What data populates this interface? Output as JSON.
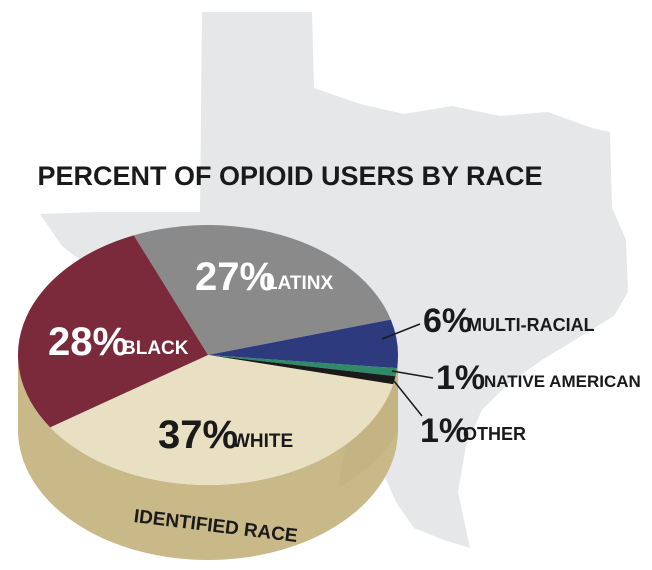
{
  "chart_data": {
    "type": "pie",
    "title": "PERCENT OF OPIOID USERS BY RACE",
    "base_label": "IDENTIFIED RACE",
    "slices": [
      {
        "label": "LATINX",
        "percent_text": "27%",
        "value": 27,
        "color": "#8a8a8a",
        "label_position": "inside"
      },
      {
        "label": "MULTI-RACIAL",
        "percent_text": "6%",
        "value": 6,
        "color": "#2e3a7e",
        "label_position": "outside"
      },
      {
        "label": "NATIVE AMERICAN",
        "percent_text": "1%",
        "value": 1,
        "color": "#2f8a6a",
        "label_position": "outside"
      },
      {
        "label": "OTHER",
        "percent_text": "1%",
        "value": 1,
        "color": "#1a1a1a",
        "label_position": "outside"
      },
      {
        "label": "WHITE",
        "percent_text": "37%",
        "value": 37,
        "color": "#e9dfc3",
        "label_position": "inside"
      },
      {
        "label": "BLACK",
        "percent_text": "28%",
        "value": 28,
        "color": "#7a2a3b",
        "label_position": "inside"
      }
    ],
    "colors": {
      "base": "#c9b888",
      "base_dark": "#b8a473",
      "background_shape": "#e6e7e8",
      "text_dark": "#1a1a1a",
      "text_light": "#ffffff"
    }
  }
}
